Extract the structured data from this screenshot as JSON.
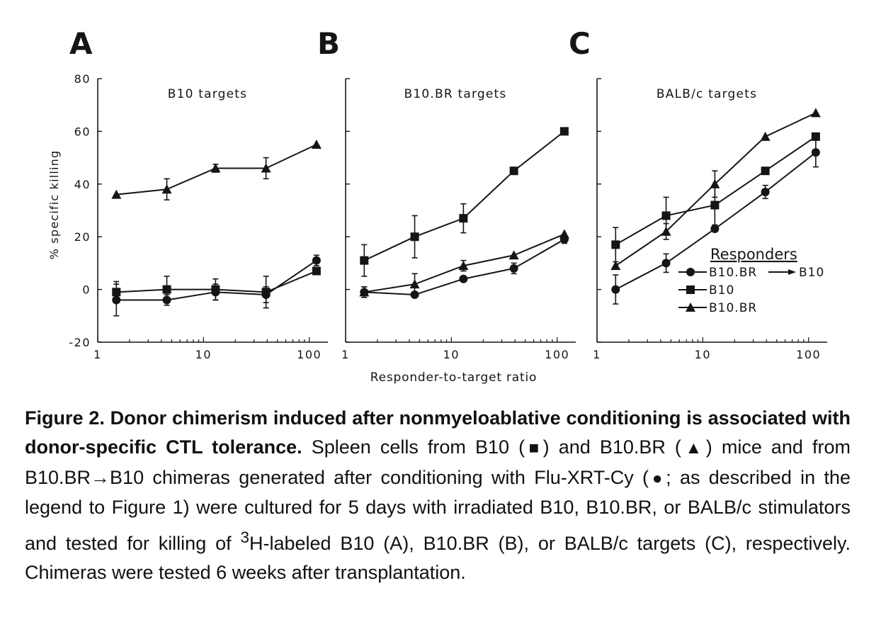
{
  "chart_data": [
    {
      "type": "line",
      "panel_letter": "A",
      "title": "B10 targets",
      "xlabel": "",
      "ylabel": "% specific killing",
      "xscale": "log",
      "xlim": [
        1,
        150
      ],
      "ylim": [
        -20,
        80
      ],
      "x_ticks": [
        "1",
        "10",
        "100"
      ],
      "y_ticks": [
        "-20",
        "0",
        "20",
        "40",
        "60",
        "80"
      ],
      "x": [
        1.5,
        4.5,
        13,
        39,
        117
      ],
      "series": [
        {
          "name": "B10.BR→B10",
          "marker": "circle",
          "values": [
            -4,
            -4,
            -1,
            -2,
            11
          ],
          "errors": [
            6,
            2,
            3,
            3,
            2
          ]
        },
        {
          "name": "B10",
          "marker": "square",
          "values": [
            -1,
            0,
            0,
            -1,
            7
          ],
          "errors": [
            4,
            5,
            4,
            6,
            1
          ]
        },
        {
          "name": "B10.BR",
          "marker": "triangle",
          "values": [
            36,
            38,
            46,
            46,
            55
          ],
          "errors": [
            0.5,
            4,
            1.5,
            4,
            0.5
          ]
        }
      ]
    },
    {
      "type": "line",
      "panel_letter": "B",
      "title": "B10.BR targets",
      "xlabel": "Responder-to-target ratio",
      "ylabel": "",
      "xscale": "log",
      "xlim": [
        1,
        150
      ],
      "ylim": [
        -20,
        80
      ],
      "x_ticks": [
        "1",
        "10",
        "100"
      ],
      "y_ticks": [],
      "x": [
        1.5,
        4.5,
        13,
        39,
        117
      ],
      "series": [
        {
          "name": "B10.BR→B10",
          "marker": "circle",
          "values": [
            -1,
            -2,
            4,
            8,
            19
          ],
          "errors": [
            2,
            1,
            1,
            2,
            1.5
          ]
        },
        {
          "name": "B10",
          "marker": "square",
          "values": [
            11,
            20,
            27,
            45,
            60
          ],
          "errors": [
            6,
            8,
            5.5,
            1,
            0.5
          ]
        },
        {
          "name": "B10.BR",
          "marker": "triangle",
          "values": [
            -1,
            2,
            9,
            13,
            21
          ],
          "errors": [
            2,
            4,
            2,
            1,
            1
          ]
        }
      ]
    },
    {
      "type": "line",
      "panel_letter": "C",
      "title": "BALB/c targets",
      "xlabel": "",
      "ylabel": "",
      "xscale": "log",
      "xlim": [
        1,
        150
      ],
      "ylim": [
        -20,
        80
      ],
      "x_ticks": [
        "1",
        "10",
        "100"
      ],
      "y_ticks": [],
      "x": [
        1.5,
        4.5,
        13,
        39,
        117
      ],
      "series": [
        {
          "name": "B10.BR→B10",
          "marker": "circle",
          "values": [
            0,
            10,
            23,
            37,
            52
          ],
          "errors": [
            5.5,
            3.5,
            1,
            2.5,
            5.5
          ]
        },
        {
          "name": "B10",
          "marker": "square",
          "values": [
            17,
            28,
            32,
            45,
            58
          ],
          "errors": [
            6.5,
            7,
            7.5,
            1,
            0.8
          ]
        },
        {
          "name": "B10.BR",
          "marker": "triangle",
          "values": [
            9,
            22,
            40,
            58,
            67
          ],
          "errors": [
            0.5,
            3,
            5,
            0.8,
            1
          ]
        }
      ],
      "legend": {
        "title": "Responders",
        "position": "lower-right",
        "entries": [
          {
            "label": "B10.BR",
            "extra": "B10",
            "marker": "circle"
          },
          {
            "label": "B10",
            "marker": "square"
          },
          {
            "label": "B10.BR",
            "marker": "triangle"
          }
        ]
      }
    }
  ],
  "caption": {
    "lead": "Figure 2. Donor chimerism induced after nonmyeloablative conditioning is associated with donor-specific CTL tolerance.",
    "part1": "Spleen cells from B10 (",
    "square_glyph": "■",
    "part2": ") and B10.BR (",
    "triangle_glyph": "▲",
    "part3": ") mice and from B10.BR→B10 chimeras generated after conditioning with Flu-XRT-Cy (",
    "circle_glyph": "●",
    "part4": "; as described in the legend to Figure 1) were cultured for 5 days with irradiated B10, B10.BR, or BALB/c stimulators and tested for killing of ",
    "superscript": "3",
    "part5": "H-labeled B10 (A), B10.BR (B), or BALB/c targets (C), respectively. Chimeras were tested 6 weeks after transplantation."
  }
}
